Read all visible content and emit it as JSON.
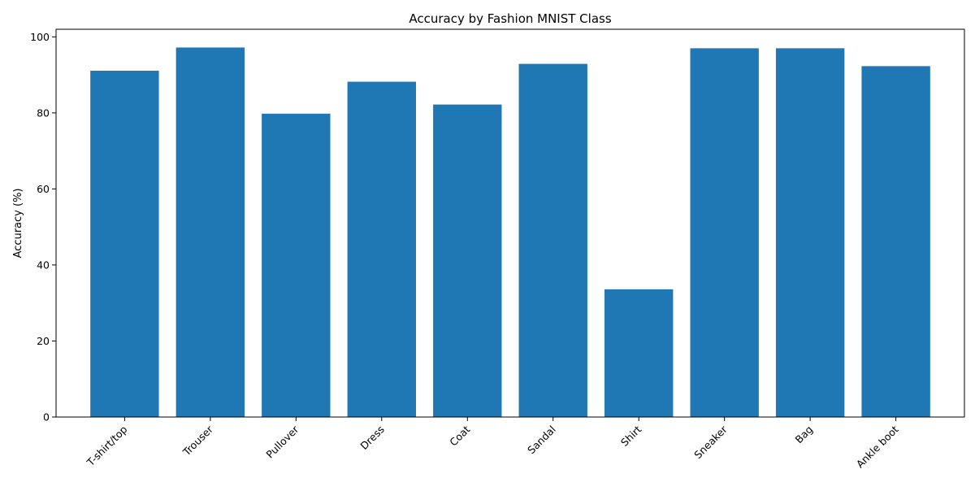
{
  "chart_data": {
    "type": "bar",
    "title": "Accuracy by Fashion MNIST Class",
    "xlabel": "",
    "ylabel": "Accuracy (%)",
    "categories": [
      "T-shirt/top",
      "Trouser",
      "Pullover",
      "Dress",
      "Coat",
      "Sandal",
      "Shirt",
      "Sneaker",
      "Bag",
      "Ankle boot"
    ],
    "values": [
      91.1,
      97.2,
      79.8,
      88.2,
      82.2,
      92.9,
      33.6,
      97.0,
      97.0,
      92.3
    ],
    "ylim": [
      0,
      102
    ],
    "yticks": [
      0,
      20,
      40,
      60,
      80,
      100
    ],
    "bar_color": "#1f77b4",
    "grid": false,
    "legend": false
  }
}
